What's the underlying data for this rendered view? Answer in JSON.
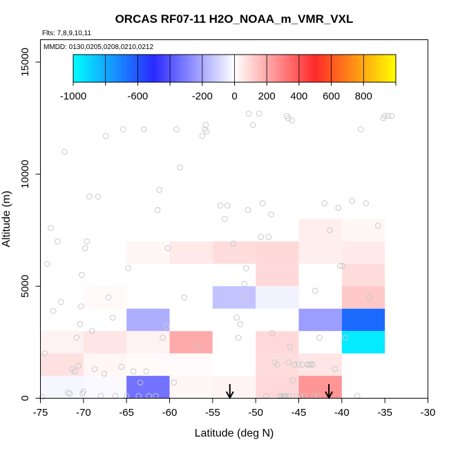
{
  "chart_data": {
    "type": "heatmap",
    "title": "ORCAS RF07-11 H2O_NOAA_m_VMR_VXL",
    "subtitle_lines": [
      "Flts: 7,8,9,10,11",
      "MMDD: 0130,0205,0208,0210,0212"
    ],
    "xlabel": "Latitude (deg N)",
    "ylabel": "Altitude (m)",
    "xlim": [
      -75,
      -30
    ],
    "ylim": [
      0,
      16000
    ],
    "x_ticks": [
      -75,
      -70,
      -65,
      -60,
      -55,
      -50,
      -45,
      -40,
      -35,
      -30
    ],
    "y_ticks": [
      0,
      5000,
      10000,
      15000
    ],
    "colorbar": {
      "range": [
        -1000,
        1000
      ],
      "tick_values": [
        -1000,
        -600,
        -200,
        0,
        200,
        400,
        600,
        800
      ],
      "tick_labels": [
        "-1000",
        "-600",
        "-200",
        "0",
        "200",
        "400",
        "600",
        "800"
      ],
      "colors": [
        "#00ffff",
        "#2a2aff",
        "#ffffff",
        "#ff2a2a",
        "#ffff00"
      ]
    },
    "cells": [
      {
        "lat0": -75,
        "lat1": -70,
        "alt0": 0,
        "alt1": 1000,
        "value": -20
      },
      {
        "lat0": -70,
        "lat1": -65,
        "alt0": 0,
        "alt1": 1000,
        "value": -15
      },
      {
        "lat0": -65,
        "lat1": -60,
        "alt0": 0,
        "alt1": 1000,
        "value": -330
      },
      {
        "lat0": -60,
        "lat1": -55,
        "alt0": 0,
        "alt1": 1000,
        "value": 20
      },
      {
        "lat0": -55,
        "lat1": -50,
        "alt0": 0,
        "alt1": 1000,
        "value": 25
      },
      {
        "lat0": -50,
        "lat1": -45,
        "alt0": 0,
        "alt1": 1000,
        "value": 90
      },
      {
        "lat0": -45,
        "lat1": -40,
        "alt0": 0,
        "alt1": 1000,
        "value": 250
      },
      {
        "lat0": -75,
        "lat1": -70,
        "alt0": 1000,
        "alt1": 2000,
        "value": 70
      },
      {
        "lat0": -70,
        "lat1": -65,
        "alt0": 1000,
        "alt1": 2000,
        "value": 20
      },
      {
        "lat0": -65,
        "lat1": -60,
        "alt0": 1000,
        "alt1": 2000,
        "value": 10
      },
      {
        "lat0": -60,
        "lat1": -55,
        "alt0": 1000,
        "alt1": 2000,
        "value": 10
      },
      {
        "lat0": -55,
        "lat1": -50,
        "alt0": 1000,
        "alt1": 2000,
        "value": 0
      },
      {
        "lat0": -50,
        "lat1": -45,
        "alt0": 1000,
        "alt1": 2000,
        "value": 80
      },
      {
        "lat0": -45,
        "lat1": -40,
        "alt0": 1000,
        "alt1": 2000,
        "value": 60
      },
      {
        "lat0": -75,
        "lat1": -70,
        "alt0": 2000,
        "alt1": 3000,
        "value": 30
      },
      {
        "lat0": -70,
        "lat1": -65,
        "alt0": 2000,
        "alt1": 3000,
        "value": 60
      },
      {
        "lat0": -65,
        "lat1": -60,
        "alt0": 2000,
        "alt1": 3000,
        "value": 30
      },
      {
        "lat0": -60,
        "lat1": -55,
        "alt0": 2000,
        "alt1": 3000,
        "value": 200
      },
      {
        "lat0": -55,
        "lat1": -50,
        "alt0": 2000,
        "alt1": 3000,
        "value": 0
      },
      {
        "lat0": -50,
        "lat1": -45,
        "alt0": 2000,
        "alt1": 3000,
        "value": 90
      },
      {
        "lat0": -45,
        "lat1": -40,
        "alt0": 2000,
        "alt1": 3000,
        "value": 0
      },
      {
        "lat0": -40,
        "lat1": -35,
        "alt0": 2000,
        "alt1": 3000,
        "value": -950
      },
      {
        "lat0": -65,
        "lat1": -60,
        "alt0": 3000,
        "alt1": 4000,
        "value": -190
      },
      {
        "lat0": -60,
        "lat1": -55,
        "alt0": 3000,
        "alt1": 4000,
        "value": 0
      },
      {
        "lat0": -55,
        "lat1": -50,
        "alt0": 3000,
        "alt1": 4000,
        "value": 0
      },
      {
        "lat0": -50,
        "lat1": -45,
        "alt0": 3000,
        "alt1": 4000,
        "value": 0
      },
      {
        "lat0": -45,
        "lat1": -40,
        "alt0": 3000,
        "alt1": 4000,
        "value": -230
      },
      {
        "lat0": -40,
        "lat1": -35,
        "alt0": 3000,
        "alt1": 4000,
        "value": -650
      },
      {
        "lat0": -70,
        "lat1": -65,
        "alt0": 4000,
        "alt1": 5000,
        "value": 15
      },
      {
        "lat0": -55,
        "lat1": -50,
        "alt0": 4000,
        "alt1": 5000,
        "value": -140
      },
      {
        "lat0": -50,
        "lat1": -45,
        "alt0": 4000,
        "alt1": 5000,
        "value": -30
      },
      {
        "lat0": -45,
        "lat1": -40,
        "alt0": 4000,
        "alt1": 5000,
        "value": 0
      },
      {
        "lat0": -40,
        "lat1": -35,
        "alt0": 4000,
        "alt1": 5000,
        "value": 130
      },
      {
        "lat0": -50,
        "lat1": -45,
        "alt0": 5000,
        "alt1": 6000,
        "value": 90
      },
      {
        "lat0": -40,
        "lat1": -35,
        "alt0": 5000,
        "alt1": 6000,
        "value": 80
      },
      {
        "lat0": -65,
        "lat1": -60,
        "alt0": 6000,
        "alt1": 7000,
        "value": 20
      },
      {
        "lat0": -60,
        "lat1": -55,
        "alt0": 6000,
        "alt1": 7000,
        "value": 50
      },
      {
        "lat0": -55,
        "lat1": -50,
        "alt0": 6000,
        "alt1": 7000,
        "value": 80
      },
      {
        "lat0": -50,
        "lat1": -45,
        "alt0": 6000,
        "alt1": 7000,
        "value": 90
      },
      {
        "lat0": -45,
        "lat1": -40,
        "alt0": 6000,
        "alt1": 7000,
        "value": 40
      },
      {
        "lat0": -40,
        "lat1": -35,
        "alt0": 6000,
        "alt1": 7000,
        "value": 50
      },
      {
        "lat0": -45,
        "lat1": -40,
        "alt0": 7000,
        "alt1": 8000,
        "value": 40
      },
      {
        "lat0": -40,
        "lat1": -35,
        "alt0": 7000,
        "alt1": 8000,
        "value": 20
      }
    ],
    "points": [
      [
        -74.8,
        50
      ],
      [
        -74.5,
        2000
      ],
      [
        -74.2,
        6000
      ],
      [
        -73.8,
        7600
      ],
      [
        -73.5,
        3900
      ],
      [
        -73.0,
        7000
      ],
      [
        -72.6,
        4300
      ],
      [
        -72.2,
        11000
      ],
      [
        -71.8,
        250
      ],
      [
        -71.6,
        200
      ],
      [
        -71.3,
        1300
      ],
      [
        -71.0,
        1200
      ],
      [
        -70.8,
        2700
      ],
      [
        -70.6,
        1450
      ],
      [
        -70.4,
        3300
      ],
      [
        -70.3,
        4100
      ],
      [
        -70.2,
        5500
      ],
      [
        -70.1,
        200
      ],
      [
        -70.0,
        300
      ],
      [
        -69.8,
        6700
      ],
      [
        -69.6,
        7000
      ],
      [
        -69.3,
        9000
      ],
      [
        -69.0,
        3000
      ],
      [
        -68.7,
        1300
      ],
      [
        -68.3,
        9000
      ],
      [
        -68.0,
        100
      ],
      [
        -67.6,
        1100
      ],
      [
        -67.4,
        11700
      ],
      [
        -67.1,
        4500
      ],
      [
        -66.6,
        3600
      ],
      [
        -66.3,
        100
      ],
      [
        -65.6,
        1400
      ],
      [
        -65.4,
        12000
      ],
      [
        -65.0,
        100
      ],
      [
        -64.8,
        5800
      ],
      [
        -64.2,
        1200
      ],
      [
        -63.6,
        100
      ],
      [
        -63.4,
        700
      ],
      [
        -63.0,
        12000
      ],
      [
        -62.7,
        1200
      ],
      [
        -62.4,
        100
      ],
      [
        -61.6,
        100
      ],
      [
        -61.4,
        8400
      ],
      [
        -61.2,
        9300
      ],
      [
        -60.8,
        2700
      ],
      [
        -60.4,
        3200
      ],
      [
        -60.2,
        6700
      ],
      [
        -59.5,
        700
      ],
      [
        -59.2,
        12000
      ],
      [
        -58.8,
        10300
      ],
      [
        -58.3,
        4500
      ],
      [
        -56.8,
        2300
      ],
      [
        -56.2,
        11700
      ],
      [
        -55.8,
        12200
      ],
      [
        -55.7,
        11900
      ],
      [
        -54.1,
        8600
      ],
      [
        -53.6,
        8000
      ],
      [
        -53.3,
        8600
      ],
      [
        -52.6,
        6900
      ],
      [
        -52.2,
        3600
      ],
      [
        -52.0,
        2700
      ],
      [
        -51.8,
        3300
      ],
      [
        -51.4,
        4500
      ],
      [
        -51.3,
        5100
      ],
      [
        -51.1,
        5800
      ],
      [
        -50.9,
        8400
      ],
      [
        -50.3,
        12200
      ],
      [
        -49.6,
        12700
      ],
      [
        -49.2,
        8700
      ],
      [
        -48.8,
        100
      ],
      [
        -48.5,
        7200
      ],
      [
        -48.2,
        8200
      ],
      [
        -48.1,
        2900
      ],
      [
        -47.8,
        1600
      ],
      [
        -47.5,
        1500
      ],
      [
        -47.2,
        100
      ],
      [
        -47.0,
        100
      ],
      [
        -46.8,
        100
      ],
      [
        -46.7,
        100
      ],
      [
        -46.6,
        100
      ],
      [
        -46.5,
        100
      ],
      [
        -46.2,
        1600
      ],
      [
        -46.1,
        100
      ],
      [
        -46.0,
        2300
      ],
      [
        -45.8,
        12400
      ],
      [
        -45.7,
        800
      ],
      [
        -45.5,
        1500
      ],
      [
        -45.2,
        100
      ],
      [
        -45.0,
        1500
      ],
      [
        -44.8,
        100
      ],
      [
        -44.6,
        1500
      ],
      [
        -44.3,
        100
      ],
      [
        -44.0,
        1500
      ],
      [
        -43.8,
        1500
      ],
      [
        -43.6,
        1500
      ],
      [
        -43.4,
        1500
      ],
      [
        -43.2,
        100
      ],
      [
        -43.1,
        4800
      ],
      [
        -42.8,
        100
      ],
      [
        -42.6,
        2700
      ],
      [
        -42.0,
        8700
      ],
      [
        -41.4,
        7500
      ],
      [
        -40.8,
        1300
      ],
      [
        -40.4,
        8500
      ],
      [
        -40.2,
        5900
      ],
      [
        -39.9,
        5900
      ],
      [
        -39.6,
        2700
      ],
      [
        -38.8,
        8800
      ],
      [
        -38.2,
        100
      ],
      [
        -37.8,
        12000
      ],
      [
        -37.2,
        8700
      ],
      [
        -36.8,
        4500
      ],
      [
        -35.8,
        7700
      ],
      [
        -35.2,
        12500
      ],
      [
        -35.0,
        12600
      ],
      [
        -34.6,
        12600
      ],
      [
        -34.2,
        12600
      ],
      [
        -46.4,
        12600
      ],
      [
        -46.2,
        12500
      ],
      [
        -50.8,
        12700
      ],
      [
        -49.4,
        7200
      ],
      [
        -55.9,
        12000
      ]
    ],
    "arrows": [
      -53.0,
      -41.5
    ]
  }
}
